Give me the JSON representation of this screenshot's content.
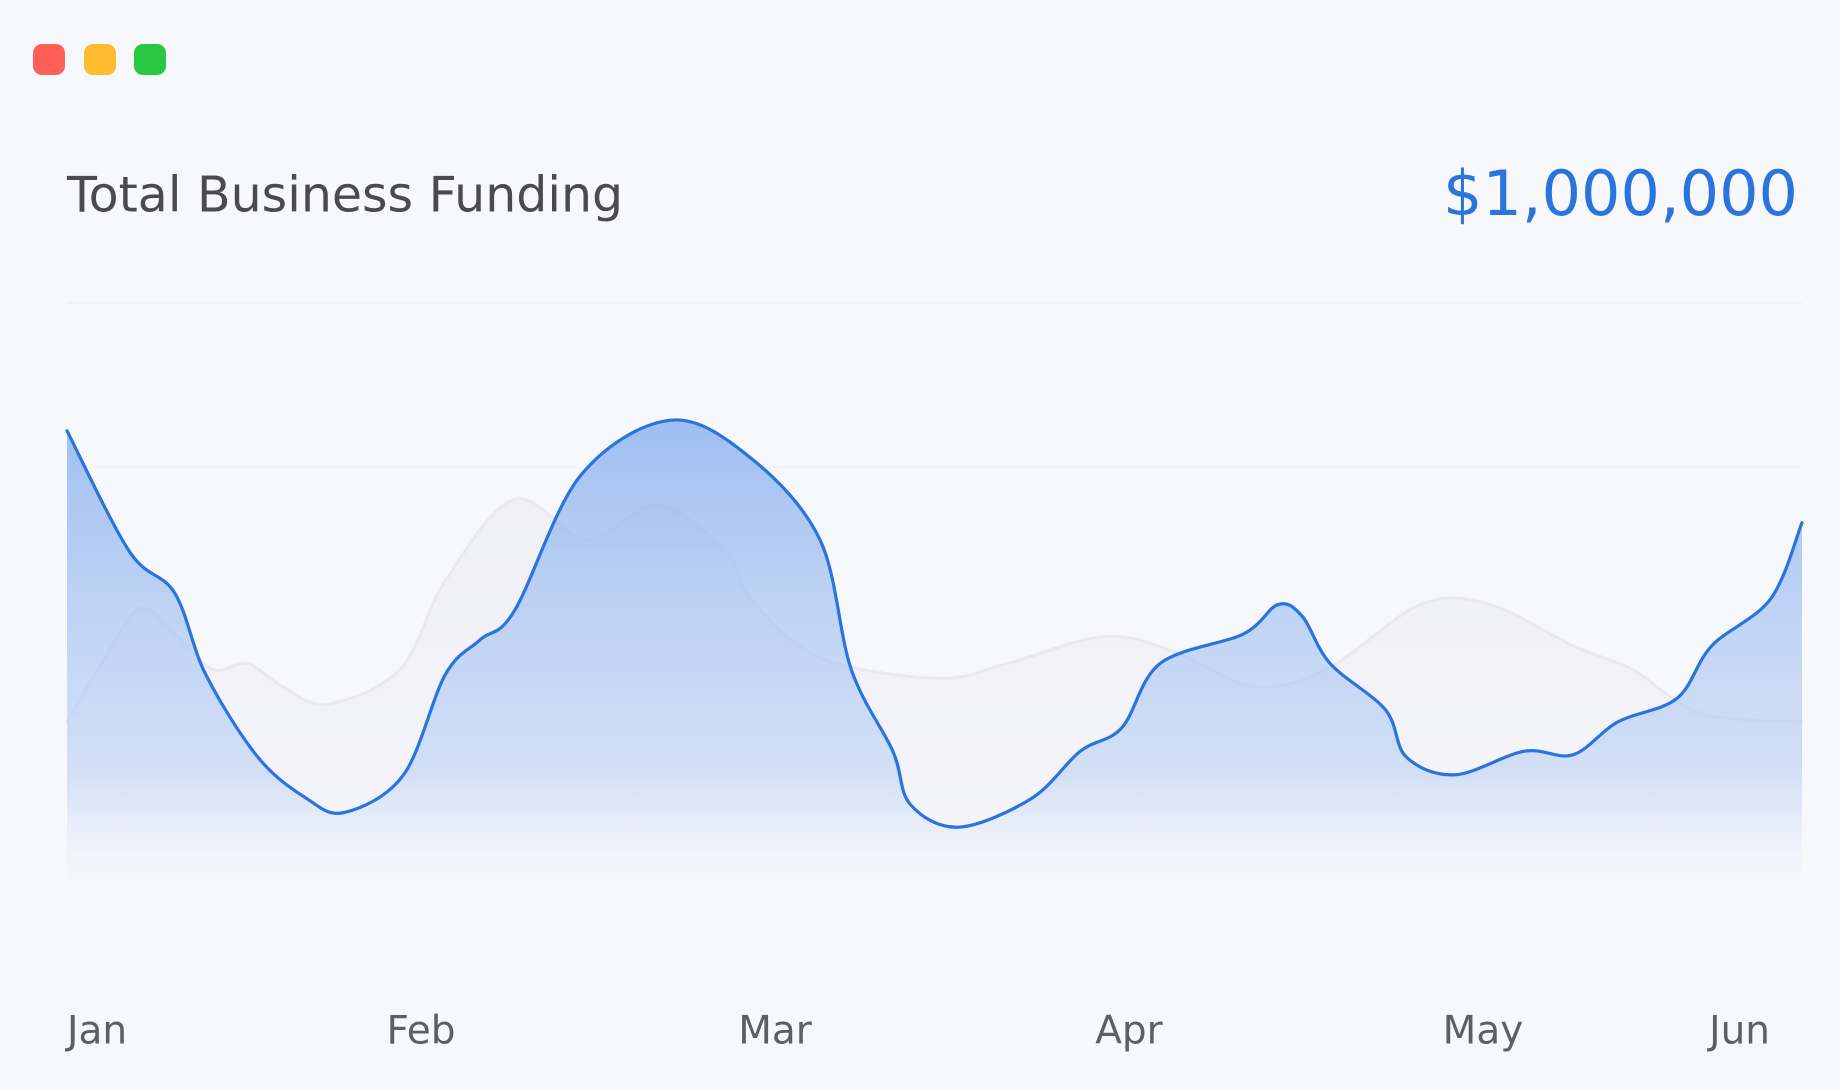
{
  "chart_data": {
    "type": "area",
    "title": "Total Business Funding",
    "headline_value": "$1,000,000",
    "xlim": [
      0,
      5
    ],
    "xticks": [
      {
        "value": 0,
        "label": "Jan"
      },
      {
        "value": 1,
        "label": "Feb"
      },
      {
        "value": 2,
        "label": "Mar"
      },
      {
        "value": 3,
        "label": "Apr"
      },
      {
        "value": 4,
        "label": "May"
      },
      {
        "value": 5,
        "label": "Jun"
      }
    ],
    "ylim": [
      0,
      100
    ],
    "series": [
      {
        "color": "#e9e8f3",
        "x": [
          0,
          0.11,
          0.21,
          0.31,
          0.42,
          0.52,
          0.62,
          0.75,
          0.96,
          1.09,
          1.29,
          1.5,
          1.7,
          1.9,
          1.97,
          2.17,
          2.51,
          2.71,
          2.99,
          3.19,
          3.42,
          3.63,
          3.9,
          4.1,
          4.34,
          4.51,
          4.71,
          5
        ],
        "values": [
          28.9,
          39.8,
          48.2,
          43.8,
          37.8,
          38.8,
          34.9,
          31.9,
          37.8,
          52.8,
          66.7,
          59.8,
          65.7,
          57.8,
          49.8,
          39.8,
          36.3,
          38.8,
          43.4,
          40.8,
          34.9,
          37.8,
          48.8,
          48.8,
          41.8,
          37.8,
          30.3,
          28.9
        ]
      },
      {
        "color": "#2a74dd",
        "x": [
          0,
          0.18,
          0.31,
          0.4,
          0.55,
          0.69,
          0.8,
          0.97,
          1.09,
          1.19,
          1.29,
          1.48,
          1.74,
          1.97,
          2.17,
          2.26,
          2.38,
          2.43,
          2.57,
          2.78,
          2.92,
          3.04,
          3.15,
          3.39,
          3.49,
          3.56,
          3.64,
          3.8,
          3.86,
          4,
          4.2,
          4.34,
          4.47,
          4.64,
          4.74,
          4.91,
          5
        ],
        "values": [
          78.3,
          57.8,
          50.8,
          36.9,
          22.9,
          15.9,
          13.5,
          19.9,
          36.9,
          42.8,
          47.8,
          70.7,
          80.1,
          73.7,
          59.8,
          37.8,
          23.9,
          14.9,
          11.0,
          15.9,
          23.9,
          27.9,
          38.8,
          43.8,
          48.8,
          46.8,
          38.8,
          30.9,
          22.9,
          19.9,
          23.9,
          23.3,
          28.9,
          32.9,
          41.8,
          49.8,
          62.7
        ]
      }
    ]
  }
}
